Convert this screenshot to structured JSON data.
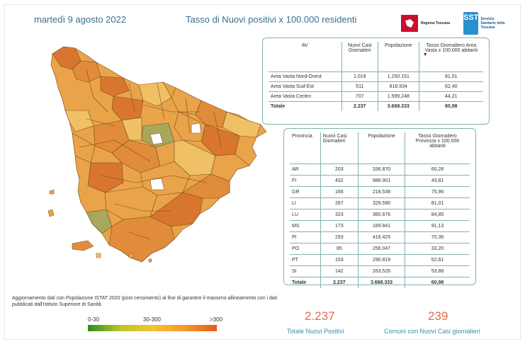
{
  "header": {
    "date": "martedì 9 agosto 2022",
    "title": "Tasso di Nuovi positivi x 100.000 residenti",
    "logo_regione": "Regione Toscana",
    "logo_sst_short": "SST",
    "logo_sst_full": "Servizio Sanitario della Toscana"
  },
  "colors": {
    "accent_text": "#3a6f8f",
    "kpi": "#e46b4c",
    "border": "#7fb3b0",
    "map_fill_main": "#e9a44a",
    "map_fill_high": "#d8762f",
    "map_fill_mid": "#f0c066",
    "map_fill_low": "#a7a85a"
  },
  "area_vasta_table": {
    "headers": [
      "AV",
      "Nuovi Casi Giornalieri",
      "Popolazione",
      "Tasso Giornaliero Area Vasta x 100.000 abitanti"
    ],
    "sort_icon": "sort-desc-icon",
    "rows": [
      [
        "Area Vasta Nord-Ovest",
        "1.019",
        "1.250.151",
        "81,51"
      ],
      [
        "Area Vasta Sud-Est",
        "511",
        "818.934",
        "62,40"
      ],
      [
        "Area Vasta Centro",
        "707",
        "1.599.248",
        "44,21"
      ]
    ],
    "total": [
      "Totale",
      "2.237",
      "3.668.333",
      "60,98"
    ]
  },
  "province_table": {
    "headers": [
      "Provincia",
      "Nuovi Casi Giornalieri",
      "Popolazione",
      "Tasso Giornaliero Provincia x 100.000 abitanti"
    ],
    "rows": [
      [
        "AR",
        "203",
        "336.870",
        "60,26"
      ],
      [
        "FI",
        "432",
        "986.001",
        "43,81"
      ],
      [
        "GR",
        "166",
        "218.538",
        "75,96"
      ],
      [
        "LI",
        "267",
        "329.590",
        "81,01"
      ],
      [
        "LU",
        "323",
        "380.676",
        "84,85"
      ],
      [
        "MS",
        "173",
        "189.841",
        "91,13"
      ],
      [
        "PI",
        "293",
        "416.425",
        "70,36"
      ],
      [
        "PO",
        "85",
        "256.047",
        "33,20"
      ],
      [
        "PT",
        "153",
        "290.819",
        "52,61"
      ],
      [
        "SI",
        "142",
        "263.526",
        "53,88"
      ]
    ],
    "total": [
      "Totale",
      "2.237",
      "3.668.333",
      "60,98"
    ]
  },
  "note": "Aggiornamento dati con Popolazione ISTAT 2020 (post censimento) al fine di garantire il massimo allineamento con i dati pubblicati dall'Istituto Superiore di Sanità",
  "legend": {
    "labels": [
      "0-30",
      "30-300",
      ">300"
    ]
  },
  "kpis": [
    {
      "value": "2.237",
      "label": "Totale Nuovi Positivi"
    },
    {
      "value": "239",
      "label": "Comuni con Nuovi Casi giornalieri"
    }
  ]
}
